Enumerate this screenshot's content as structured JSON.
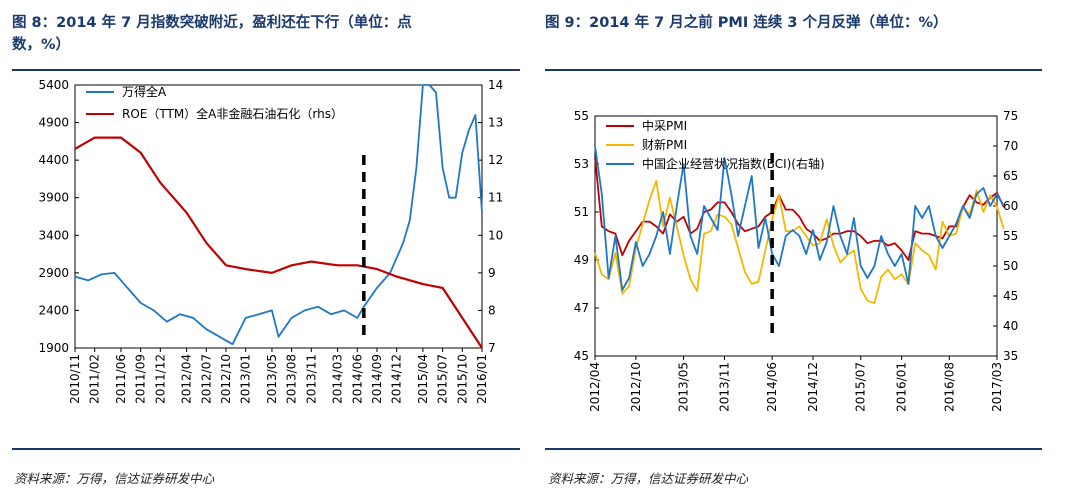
{
  "left": {
    "title": "图 8：2014 年 7 月指数突破附近，盈利还在下行（单位：点数，%）",
    "title_line1": "图 8：2014 年 7 月指数突破附近，盈利还在下行（单位：点",
    "title_line2": "数，%）",
    "source": "资料来源：万得，信达证券研发中心"
  },
  "right": {
    "title": "图 9：2014 年 7 月之前 PMI 连续 3 个月反弹（单位：%）",
    "source": "资料来源：万得，信达证券研发中心"
  },
  "chart_data": [
    {
      "type": "line",
      "x_ticks": [
        "2010/11",
        "2011/02",
        "2011/06",
        "2011/09",
        "2011/12",
        "2012/04",
        "2012/07",
        "2012/10",
        "2013/01",
        "2013/05",
        "2013/08",
        "2013/11",
        "2014/03",
        "2014/06",
        "2014/09",
        "2014/12",
        "2015/04",
        "2015/07",
        "2015/10",
        "2016/01"
      ],
      "ylim": [
        1900,
        5400
      ],
      "y_ticks": [
        1900,
        2400,
        2900,
        3400,
        3900,
        4400,
        4900,
        5400
      ],
      "y2lim": [
        7,
        14
      ],
      "y2_ticks": [
        7,
        8,
        9,
        10,
        11,
        12,
        13,
        14
      ],
      "legend": "top-left",
      "marker_x": "2014/07",
      "series": [
        {
          "name": "万得全A",
          "axis": "left",
          "color": "#1f77c8",
          "x": [
            "2010/11",
            "2011/01",
            "2011/03",
            "2011/05",
            "2011/07",
            "2011/09",
            "2011/11",
            "2012/01",
            "2012/03",
            "2012/05",
            "2012/07",
            "2012/09",
            "2012/11",
            "2013/01",
            "2013/03",
            "2013/05",
            "2013/06",
            "2013/08",
            "2013/10",
            "2013/12",
            "2014/02",
            "2014/04",
            "2014/06",
            "2014/07",
            "2014/09",
            "2014/11",
            "2014/12",
            "2015/01",
            "2015/02",
            "2015/03",
            "2015/04",
            "2015/05",
            "2015/06",
            "2015/07",
            "2015/08",
            "2015/09",
            "2015/10",
            "2015/11",
            "2015/12",
            "2016/01"
          ],
          "values": [
            2850,
            2800,
            2880,
            2900,
            2700,
            2500,
            2400,
            2250,
            2350,
            2300,
            2150,
            2050,
            1950,
            2300,
            2350,
            2400,
            2050,
            2300,
            2400,
            2450,
            2350,
            2400,
            2300,
            2450,
            2700,
            2900,
            3100,
            3300,
            3600,
            4300,
            5400,
            5400,
            5300,
            4300,
            3900,
            3900,
            4500,
            4800,
            5000,
            3700
          ]
        },
        {
          "name": "ROE（TTM）全A非金融石油石化（rhs）",
          "axis": "right",
          "color": "#c00000",
          "x": [
            "2010/11",
            "2011/02",
            "2011/06",
            "2011/09",
            "2011/12",
            "2012/04",
            "2012/07",
            "2012/10",
            "2013/01",
            "2013/05",
            "2013/08",
            "2013/11",
            "2014/03",
            "2014/06",
            "2014/09",
            "2014/12",
            "2015/04",
            "2015/07",
            "2015/10",
            "2016/01"
          ],
          "values": [
            12.3,
            12.6,
            12.6,
            12.2,
            11.4,
            10.6,
            9.8,
            9.2,
            9.1,
            9.0,
            9.2,
            9.3,
            9.2,
            9.2,
            9.1,
            8.9,
            8.7,
            8.6,
            7.8,
            7.0
          ]
        }
      ]
    },
    {
      "type": "line",
      "x_ticks": [
        "2012/04",
        "2012/10",
        "2013/05",
        "2013/11",
        "2014/06",
        "2014/12",
        "2015/07",
        "2016/01",
        "2016/08",
        "2017/03"
      ],
      "ylim": [
        45,
        55
      ],
      "y_ticks": [
        45,
        47,
        49,
        51,
        53,
        55
      ],
      "y2lim": [
        35,
        75
      ],
      "y2_ticks": [
        35,
        40,
        45,
        50,
        55,
        60,
        65,
        70,
        75
      ],
      "legend": "top-left",
      "marker_x": "2014/06",
      "series": [
        {
          "name": "中采PMI",
          "axis": "left",
          "color": "#c00000",
          "x": [
            "2012/04",
            "2012/05",
            "2012/06",
            "2012/07",
            "2012/08",
            "2012/09",
            "2012/10",
            "2012/11",
            "2012/12",
            "2013/01",
            "2013/02",
            "2013/03",
            "2013/04",
            "2013/05",
            "2013/06",
            "2013/07",
            "2013/08",
            "2013/09",
            "2013/10",
            "2013/11",
            "2013/12",
            "2014/01",
            "2014/02",
            "2014/03",
            "2014/04",
            "2014/05",
            "2014/06",
            "2014/07",
            "2014/08",
            "2014/09",
            "2014/10",
            "2014/11",
            "2014/12",
            "2015/01",
            "2015/02",
            "2015/03",
            "2015/04",
            "2015/05",
            "2015/06",
            "2015/07",
            "2015/08",
            "2015/09",
            "2015/10",
            "2015/11",
            "2015/12",
            "2016/01",
            "2016/02",
            "2016/03",
            "2016/04",
            "2016/05",
            "2016/06",
            "2016/07",
            "2016/08",
            "2016/09",
            "2016/10",
            "2016/11",
            "2016/12",
            "2017/01",
            "2017/02",
            "2017/03",
            "2017/04"
          ],
          "values": [
            53.3,
            50.4,
            50.2,
            50.1,
            49.2,
            49.8,
            50.2,
            50.6,
            50.6,
            50.4,
            50.1,
            50.9,
            50.6,
            50.8,
            50.1,
            50.3,
            51.0,
            51.1,
            51.4,
            51.4,
            51.0,
            50.5,
            50.2,
            50.3,
            50.4,
            50.8,
            51.0,
            51.7,
            51.1,
            51.1,
            50.8,
            50.3,
            50.1,
            49.8,
            49.9,
            50.1,
            50.1,
            50.2,
            50.2,
            50.0,
            49.7,
            49.8,
            49.8,
            49.6,
            49.7,
            49.4,
            49.0,
            50.2,
            50.1,
            50.1,
            50.0,
            49.9,
            50.4,
            50.4,
            51.2,
            51.7,
            51.4,
            51.3,
            51.6,
            51.8,
            51.2
          ]
        },
        {
          "name": "财新PMI",
          "axis": "left",
          "color": "#f5b800",
          "x": [
            "2012/04",
            "2012/05",
            "2012/06",
            "2012/07",
            "2012/08",
            "2012/09",
            "2012/10",
            "2012/11",
            "2012/12",
            "2013/01",
            "2013/02",
            "2013/03",
            "2013/04",
            "2013/05",
            "2013/06",
            "2013/07",
            "2013/08",
            "2013/09",
            "2013/10",
            "2013/11",
            "2013/12",
            "2014/01",
            "2014/02",
            "2014/03",
            "2014/04",
            "2014/05",
            "2014/06",
            "2014/07",
            "2014/08",
            "2014/09",
            "2014/10",
            "2014/11",
            "2014/12",
            "2015/01",
            "2015/02",
            "2015/03",
            "2015/04",
            "2015/05",
            "2015/06",
            "2015/07",
            "2015/08",
            "2015/09",
            "2015/10",
            "2015/11",
            "2015/12",
            "2016/01",
            "2016/02",
            "2016/03",
            "2016/04",
            "2016/05",
            "2016/06",
            "2016/07",
            "2016/08",
            "2016/09",
            "2016/10",
            "2016/11",
            "2016/12",
            "2017/01",
            "2017/02",
            "2017/03",
            "2017/04"
          ],
          "values": [
            49.3,
            48.4,
            48.2,
            49.3,
            47.6,
            47.9,
            49.5,
            50.5,
            51.5,
            52.3,
            50.4,
            51.6,
            50.4,
            49.2,
            48.2,
            47.7,
            50.1,
            50.2,
            50.9,
            50.8,
            50.5,
            49.5,
            48.5,
            48.0,
            48.1,
            49.4,
            50.7,
            51.7,
            50.2,
            50.2,
            50.4,
            50.0,
            49.6,
            49.7,
            50.7,
            49.6,
            48.9,
            49.2,
            49.4,
            47.8,
            47.3,
            47.2,
            48.3,
            48.6,
            48.2,
            48.4,
            48.0,
            49.7,
            49.4,
            49.2,
            48.6,
            50.6,
            50.0,
            50.1,
            51.2,
            50.9,
            51.9,
            51.0,
            51.7,
            51.2,
            50.3
          ]
        },
        {
          "name": "中国企业经营状况指数(BCI)(右轴)",
          "axis": "right",
          "color": "#1f77c8",
          "x": [
            "2012/04",
            "2012/05",
            "2012/06",
            "2012/07",
            "2012/08",
            "2012/09",
            "2012/10",
            "2012/11",
            "2012/12",
            "2013/01",
            "2013/02",
            "2013/03",
            "2013/04",
            "2013/05",
            "2013/06",
            "2013/07",
            "2013/08",
            "2013/09",
            "2013/10",
            "2013/11",
            "2013/12",
            "2014/01",
            "2014/02",
            "2014/03",
            "2014/04",
            "2014/05",
            "2014/06",
            "2014/07",
            "2014/08",
            "2014/09",
            "2014/10",
            "2014/11",
            "2014/12",
            "2015/01",
            "2015/02",
            "2015/03",
            "2015/04",
            "2015/05",
            "2015/06",
            "2015/07",
            "2015/08",
            "2015/09",
            "2015/10",
            "2015/11",
            "2015/12",
            "2016/01",
            "2016/02",
            "2016/03",
            "2016/04",
            "2016/05",
            "2016/06",
            "2016/07",
            "2016/08",
            "2016/09",
            "2016/10",
            "2016/11",
            "2016/12",
            "2017/01",
            "2017/02",
            "2017/03",
            "2017/04"
          ],
          "values": [
            70,
            62,
            48,
            55,
            46,
            48,
            54,
            50,
            52,
            55,
            59,
            52,
            60,
            67,
            55,
            52,
            60,
            58,
            56,
            68,
            62,
            55,
            60,
            65,
            53,
            58,
            52,
            50,
            55,
            56,
            55,
            52,
            56,
            51,
            54,
            60,
            55,
            52,
            58,
            50,
            48,
            50,
            55,
            52,
            50,
            52,
            47,
            60,
            58,
            60,
            55,
            53,
            55,
            57,
            60,
            58,
            62,
            63,
            60,
            62,
            60
          ]
        }
      ]
    }
  ]
}
